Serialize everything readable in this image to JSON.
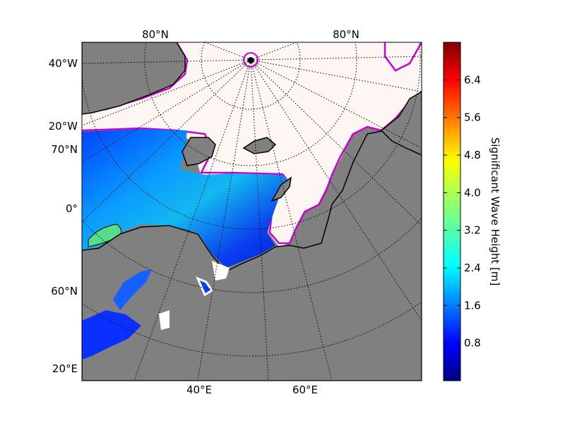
{
  "chart_data": {
    "type": "heatmap",
    "title": "",
    "colorbar": {
      "label": "Significant Wave Height [m]",
      "colormap": "jet",
      "range": [
        0,
        7.2
      ],
      "ticks": [
        "0.8",
        "1.6",
        "2.4",
        "3.2",
        "4.0",
        "4.8",
        "5.6",
        "6.4"
      ]
    },
    "graticule_labels": {
      "top": [
        "80°N",
        "80°N"
      ],
      "left": [
        "40°W",
        "20°W",
        "70°N",
        "0°",
        "60°N",
        "20°E"
      ],
      "bottom": [
        "40°E",
        "60°E"
      ]
    },
    "colors": {
      "land": "#808080",
      "ice": "#fdf6f3",
      "ice_edge": "#cc00cc",
      "coast": "#000000",
      "frame": "#000000"
    }
  }
}
